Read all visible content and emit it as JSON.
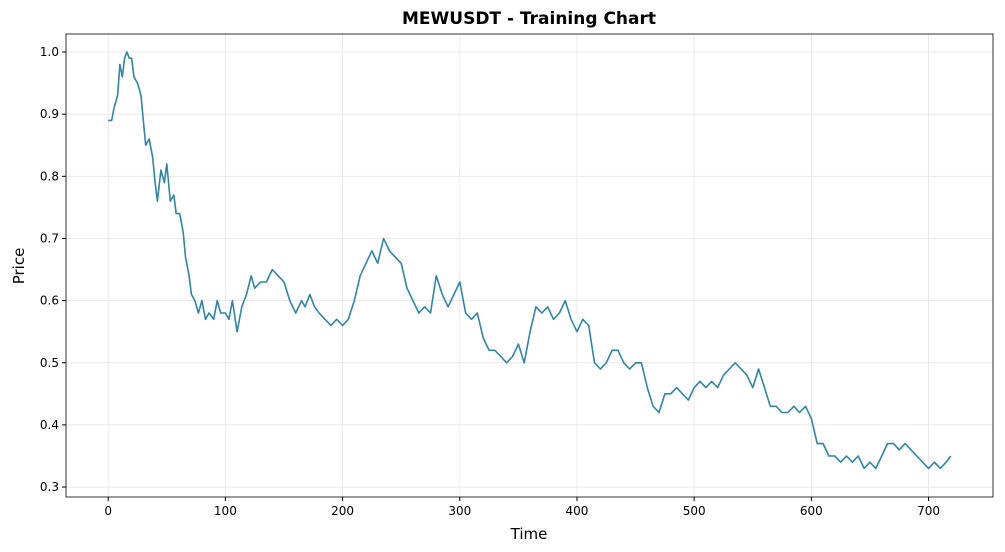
{
  "chart_data": {
    "type": "line",
    "title": "MEWUSDT - Training Chart",
    "x_label": "Time",
    "y_label": "Price",
    "x": [
      0,
      3,
      5,
      8,
      10,
      12,
      14,
      16,
      18,
      20,
      22,
      25,
      28,
      30,
      32,
      35,
      38,
      40,
      42,
      45,
      48,
      50,
      53,
      56,
      58,
      61,
      64,
      66,
      69,
      71,
      74,
      77,
      80,
      83,
      86,
      90,
      93,
      96,
      100,
      103,
      106,
      110,
      114,
      118,
      122,
      125,
      130,
      135,
      140,
      145,
      150,
      155,
      160,
      165,
      168,
      172,
      176,
      180,
      185,
      190,
      195,
      200,
      205,
      210,
      215,
      220,
      225,
      230,
      235,
      240,
      245,
      250,
      255,
      260,
      265,
      270,
      275,
      280,
      285,
      290,
      295,
      300,
      305,
      310,
      315,
      320,
      325,
      330,
      335,
      340,
      345,
      350,
      355,
      360,
      365,
      370,
      375,
      380,
      385,
      390,
      395,
      400,
      405,
      410,
      415,
      420,
      425,
      430,
      435,
      440,
      445,
      450,
      455,
      460,
      465,
      470,
      475,
      480,
      485,
      490,
      495,
      500,
      505,
      510,
      515,
      520,
      525,
      530,
      535,
      540,
      545,
      550,
      555,
      560,
      565,
      570,
      575,
      580,
      585,
      590,
      595,
      600,
      605,
      610,
      615,
      620,
      625,
      630,
      635,
      640,
      645,
      650,
      655,
      660,
      665,
      670,
      675,
      680,
      685,
      690,
      695,
      700,
      705,
      710,
      715,
      719
    ],
    "series": [
      {
        "name": "Price",
        "color": "#2e86ab",
        "values": [
          0.89,
          0.89,
          0.91,
          0.93,
          0.98,
          0.96,
          0.99,
          1.0,
          0.99,
          0.99,
          0.96,
          0.95,
          0.93,
          0.89,
          0.85,
          0.86,
          0.83,
          0.79,
          0.76,
          0.81,
          0.79,
          0.82,
          0.76,
          0.77,
          0.74,
          0.74,
          0.71,
          0.67,
          0.64,
          0.61,
          0.6,
          0.58,
          0.6,
          0.57,
          0.58,
          0.57,
          0.6,
          0.58,
          0.58,
          0.57,
          0.6,
          0.55,
          0.59,
          0.61,
          0.64,
          0.62,
          0.63,
          0.63,
          0.65,
          0.64,
          0.63,
          0.6,
          0.58,
          0.6,
          0.59,
          0.61,
          0.59,
          0.58,
          0.57,
          0.56,
          0.57,
          0.56,
          0.57,
          0.6,
          0.64,
          0.66,
          0.68,
          0.66,
          0.7,
          0.68,
          0.67,
          0.66,
          0.62,
          0.6,
          0.58,
          0.59,
          0.58,
          0.64,
          0.61,
          0.59,
          0.61,
          0.63,
          0.58,
          0.57,
          0.58,
          0.54,
          0.52,
          0.52,
          0.51,
          0.5,
          0.51,
          0.53,
          0.5,
          0.55,
          0.59,
          0.58,
          0.59,
          0.57,
          0.58,
          0.6,
          0.57,
          0.55,
          0.57,
          0.56,
          0.5,
          0.49,
          0.5,
          0.52,
          0.52,
          0.5,
          0.49,
          0.5,
          0.5,
          0.46,
          0.43,
          0.42,
          0.45,
          0.45,
          0.46,
          0.45,
          0.44,
          0.46,
          0.47,
          0.46,
          0.47,
          0.46,
          0.48,
          0.49,
          0.5,
          0.49,
          0.48,
          0.46,
          0.49,
          0.46,
          0.43,
          0.43,
          0.42,
          0.42,
          0.43,
          0.42,
          0.43,
          0.41,
          0.37,
          0.37,
          0.35,
          0.35,
          0.34,
          0.35,
          0.34,
          0.35,
          0.33,
          0.34,
          0.33,
          0.35,
          0.37,
          0.37,
          0.36,
          0.37,
          0.36,
          0.35,
          0.34,
          0.33,
          0.34,
          0.33,
          0.34,
          0.35
        ]
      }
    ],
    "xlim": [
      -36,
      755
    ],
    "ylim": [
      0.284,
      1.029
    ],
    "xticks": [
      0,
      100,
      200,
      300,
      400,
      500,
      600,
      700
    ],
    "yticks": [
      0.3,
      0.4,
      0.5,
      0.6,
      0.7,
      0.8,
      0.9,
      {
        "value": 1,
        "label": "1.0"
      }
    ],
    "grid": true
  }
}
